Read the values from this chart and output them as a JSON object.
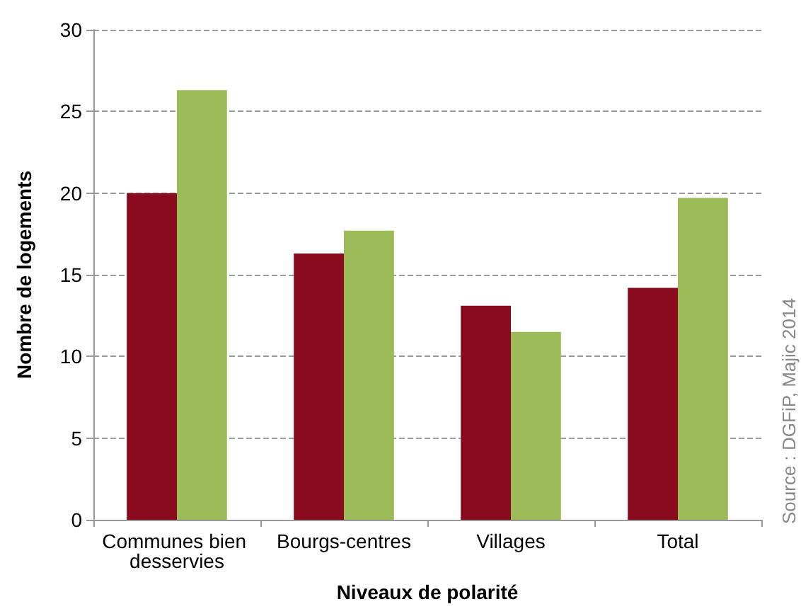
{
  "chart_data": {
    "type": "bar",
    "xlabel": "Niveaux de polarité",
    "ylabel": "Nombre de logements",
    "categories": [
      "Communes bien desservies",
      "Bourgs-centres",
      "Villages",
      "Total"
    ],
    "series": [
      {
        "color": "#8b0b1e",
        "values": [
          20.0,
          16.3,
          13.1,
          14.2
        ]
      },
      {
        "color": "#9bbb59",
        "values": [
          26.3,
          17.7,
          11.5,
          19.7
        ]
      }
    ],
    "ylim": [
      0,
      30
    ],
    "yticks": [
      0,
      5,
      10,
      15,
      20,
      25,
      30
    ],
    "grid": "y",
    "annotations": [
      "Source : DGFiP, Majic 2014"
    ]
  }
}
